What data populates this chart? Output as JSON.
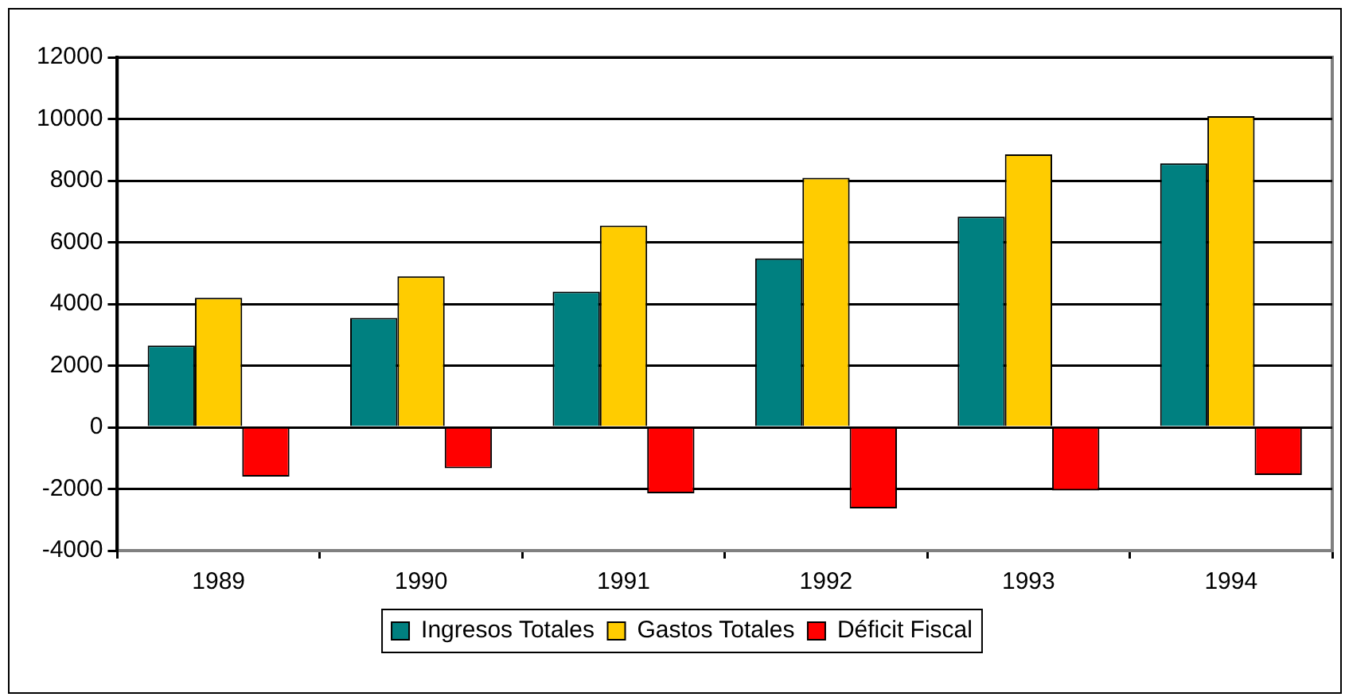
{
  "chart_data": {
    "type": "bar",
    "categories": [
      "1989",
      "1990",
      "1991",
      "1992",
      "1993",
      "1994"
    ],
    "series": [
      {
        "name": "Ingresos Totales",
        "color": "#008080",
        "values": [
          2650,
          3550,
          4400,
          5480,
          6830,
          8560
        ]
      },
      {
        "name": "Gastos Totales",
        "color": "#ffcc00",
        "values": [
          4200,
          4900,
          6540,
          8090,
          8850,
          10090
        ]
      },
      {
        "name": "Déficit Fiscal",
        "color": "#ff0000",
        "values": [
          -1600,
          -1330,
          -2140,
          -2630,
          -2050,
          -1550
        ]
      }
    ],
    "ylim": [
      -4000,
      12000
    ],
    "yticks": [
      -4000,
      -2000,
      0,
      2000,
      4000,
      6000,
      8000,
      10000,
      12000
    ],
    "grid": "y",
    "legend": "bottom"
  }
}
